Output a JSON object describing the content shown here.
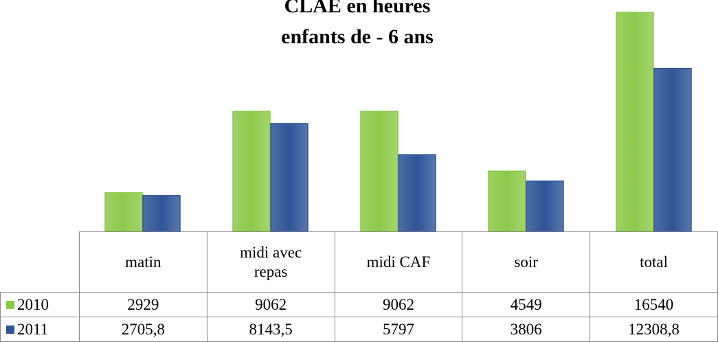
{
  "chart_data": {
    "type": "bar",
    "title": [
      "CLAE en heures",
      "enfants de - 6 ans"
    ],
    "categories": [
      "matin",
      "midi avec repas",
      "midi CAF",
      "soir",
      "total"
    ],
    "series": [
      {
        "name": "2010",
        "color": "#8cc94a",
        "values": [
          2929,
          9062,
          9062,
          4549,
          16540
        ]
      },
      {
        "name": "2011",
        "color": "#2f5597",
        "values": [
          2705.8,
          8143.5,
          5797,
          3806,
          12308.8
        ],
        "value_labels": [
          "2705,8",
          "8143,5",
          "5797",
          "3806",
          "12308,8"
        ]
      }
    ]
  }
}
